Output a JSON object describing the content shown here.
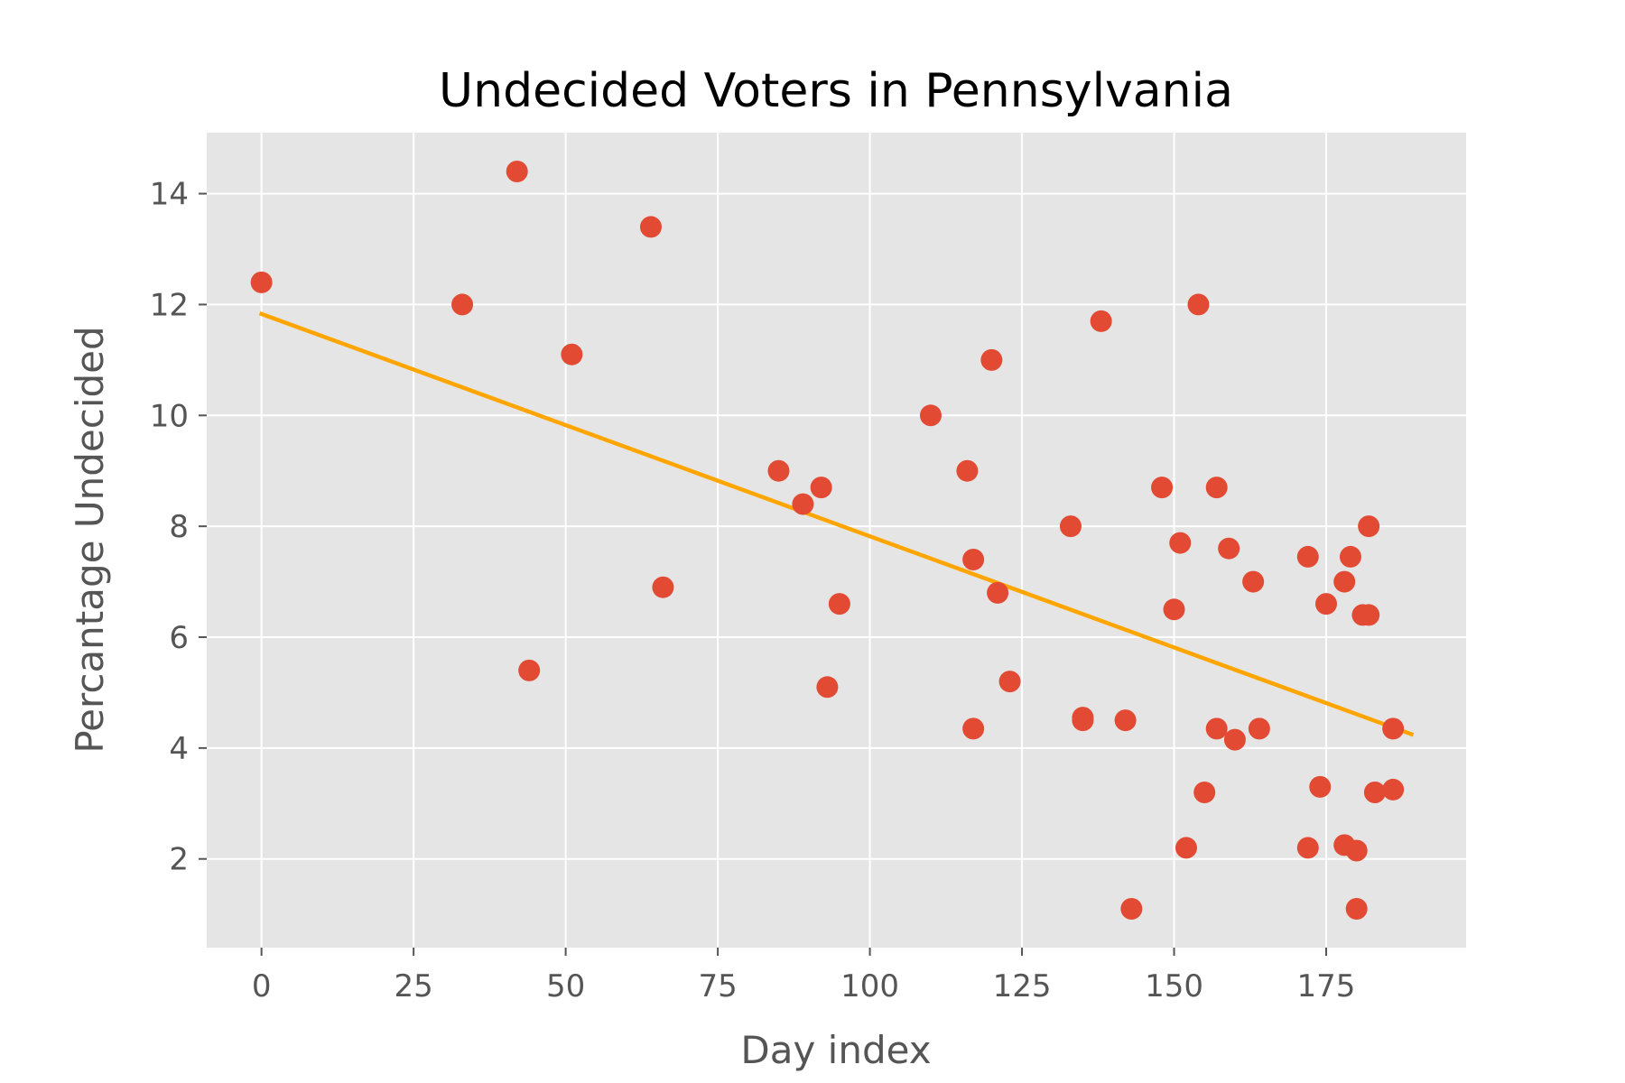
{
  "chart_data": {
    "type": "scatter",
    "title": "Undecided Voters in Pennsylvania",
    "xlabel": "Day index",
    "ylabel": "Percantage Undecided",
    "xlim": [
      -9,
      198
    ],
    "ylim": [
      0.4,
      15.1
    ],
    "xticks": [
      0,
      25,
      50,
      75,
      100,
      125,
      150,
      175
    ],
    "yticks": [
      2,
      4,
      6,
      8,
      10,
      12,
      14
    ],
    "grid": true,
    "colors": {
      "background": "#e5e5e5",
      "grid": "#ffffff",
      "points": "#e24a33",
      "trend": "#ffa500"
    },
    "series": [
      {
        "type": "scatter",
        "x": [
          0,
          33,
          42,
          44,
          51,
          64,
          66,
          85,
          89,
          92,
          93,
          95,
          110,
          116,
          117,
          117,
          120,
          121,
          123,
          133,
          135,
          135,
          138,
          142,
          143,
          148,
          150,
          151,
          152,
          154,
          155,
          157,
          157,
          159,
          160,
          163,
          164,
          172,
          172,
          174,
          175,
          178,
          178,
          179,
          180,
          180,
          181,
          182,
          182,
          183,
          186,
          186
        ],
        "y": [
          12.4,
          12.0,
          14.4,
          5.4,
          11.1,
          13.4,
          6.9,
          9.0,
          8.4,
          8.7,
          5.1,
          6.6,
          10.0,
          9.0,
          7.4,
          4.35,
          11.0,
          6.8,
          5.2,
          8.0,
          4.55,
          4.5,
          11.7,
          4.5,
          1.1,
          8.7,
          6.5,
          7.7,
          2.2,
          12.0,
          3.2,
          8.7,
          4.35,
          7.6,
          4.15,
          7.0,
          4.35,
          7.45,
          2.2,
          3.3,
          6.6,
          7.0,
          2.25,
          7.45,
          2.15,
          1.1,
          6.4,
          6.4,
          8.0,
          3.2,
          4.35,
          3.25
        ]
      },
      {
        "type": "line",
        "x": [
          0,
          189
        ],
        "y": [
          11.83,
          4.25
        ]
      }
    ]
  }
}
